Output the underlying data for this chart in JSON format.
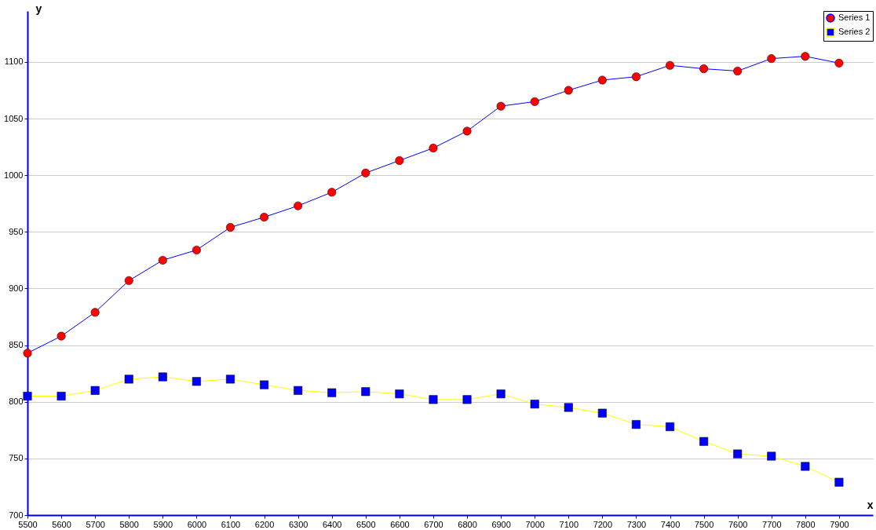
{
  "chart_data": {
    "type": "line",
    "xlabel": "x",
    "ylabel": "y",
    "x": [
      5500,
      5600,
      5700,
      5800,
      5900,
      6000,
      6100,
      6200,
      6300,
      6400,
      6500,
      6600,
      6700,
      6800,
      6900,
      7000,
      7100,
      7200,
      7300,
      7400,
      7500,
      7600,
      7700,
      7800,
      7900
    ],
    "series": [
      {
        "name": "Series 1",
        "color": "#0000ff",
        "marker": "circle",
        "colors": [
          "#ff0000",
          "#ff0000",
          "#ff0000",
          "#ff0000",
          "#ff0000",
          "#ff0000",
          "#ff0000",
          "#ff0000",
          "#ff0000",
          "#ff0000",
          "#ff0000",
          "#ff0000",
          "#ff0000",
          "#ff0000",
          "#ff0000",
          "#ff0000",
          "#ff0000",
          "#ff0000",
          "#ff0000",
          "#ff0000",
          "#ff0000",
          "#ff0000",
          "#ff0000",
          "#ff0000",
          "#ff0000"
        ],
        "values": [
          843,
          858,
          879,
          907,
          925,
          934,
          954,
          963,
          973,
          985,
          1002,
          1013,
          1024,
          1039,
          1061,
          1065,
          1075,
          1084,
          1087,
          1097,
          1094,
          1092,
          1103,
          1105,
          1099
        ]
      },
      {
        "name": "Series 2",
        "color": "#ffff00",
        "marker": "square",
        "colors": [
          "#0000ff",
          "#0000ff",
          "#0000ff",
          "#0000ff",
          "#0000ff",
          "#0000ff",
          "#0000ff",
          "#0000ff",
          "#0000ff",
          "#0000ff",
          "#0000ff",
          "#0000ff",
          "#0000ff",
          "#0000ff",
          "#0000ff",
          "#0000ff",
          "#0000ff",
          "#0000ff",
          "#0000ff",
          "#0000ff",
          "#0000ff",
          "#0000ff",
          "#0000ff",
          "#0000ff",
          "#0000ff"
        ],
        "values": [
          805,
          805,
          810,
          820,
          822,
          818,
          820,
          815,
          810,
          808,
          809,
          807,
          802,
          802,
          807,
          798,
          795,
          790,
          780,
          778,
          765,
          754,
          752,
          743,
          729
        ]
      }
    ],
    "xlim": [
      5500,
      8000
    ],
    "ylim": [
      700,
      1145
    ],
    "xticks": [
      5500,
      5600,
      5700,
      5800,
      5900,
      6000,
      6100,
      6200,
      6300,
      6400,
      6500,
      6600,
      6700,
      6800,
      6900,
      7000,
      7100,
      7200,
      7300,
      7400,
      7500,
      7600,
      7700,
      7800,
      7900
    ],
    "yticks": [
      700,
      750,
      800,
      850,
      900,
      950,
      1000,
      1050,
      1100
    ],
    "grid": "y",
    "legend": "top right"
  }
}
